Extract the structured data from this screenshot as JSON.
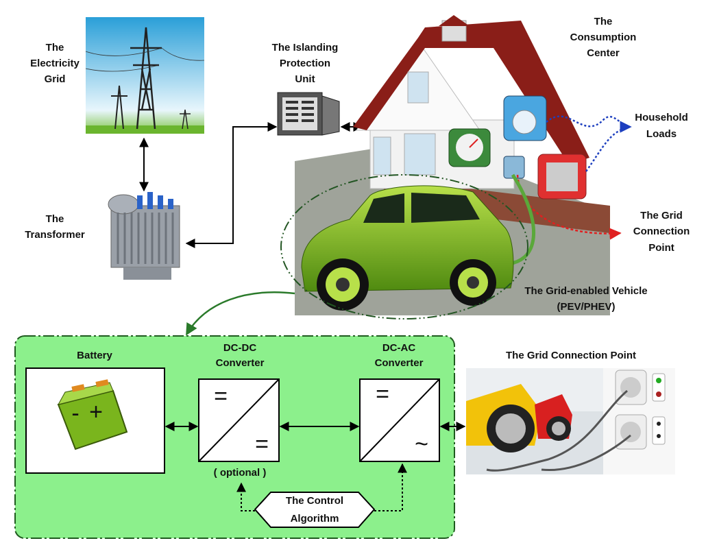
{
  "grid": {
    "label": [
      "The",
      "Electricity",
      "Grid"
    ]
  },
  "transformer": {
    "label": [
      "The",
      "Transformer"
    ]
  },
  "islanding": {
    "label": [
      "The Islanding",
      "Protection",
      "Unit"
    ]
  },
  "consumption": {
    "label": [
      "The",
      "Consumption",
      "Center"
    ]
  },
  "household": {
    "label": [
      "Household",
      "Loads"
    ]
  },
  "grid_connection": {
    "label": [
      "The Grid",
      "Connection",
      "Point"
    ]
  },
  "vehicle": {
    "label": [
      "The Grid-enabled Vehicle",
      "(PEV/PHEV)"
    ]
  },
  "powertrain": {
    "battery": {
      "label": "Battery",
      "minus": "-",
      "plus": "+"
    },
    "dcdc": {
      "label": [
        "DC-DC",
        "Converter"
      ],
      "note": "( optional )",
      "input": "=",
      "output": "="
    },
    "dcac": {
      "label": [
        "DC-AC",
        "Converter"
      ],
      "input": "=",
      "output": "~"
    },
    "control": {
      "label": [
        "The Control",
        "Algorithm"
      ]
    }
  },
  "grid_connection_photo": {
    "label": "The Grid Connection Point"
  }
}
